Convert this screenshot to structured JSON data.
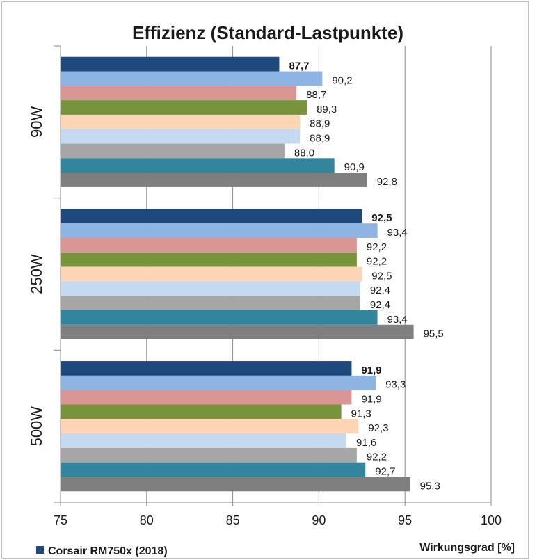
{
  "chart_data": {
    "type": "bar",
    "orientation": "horizontal",
    "title": "Effizienz (Standard-Lastpunkte)",
    "xlabel": "Wirkungsgrad [%]",
    "ylabel": "",
    "xlim": [
      75,
      100
    ],
    "x_ticks": [
      "75",
      "80",
      "85",
      "90",
      "95",
      "100"
    ],
    "grid": true,
    "categories": [
      "90W",
      "250W",
      "500W"
    ],
    "series": [
      {
        "name": "Corsair RM750x (2018)",
        "color": "#1f497d",
        "bold_labels": true,
        "values": [
          87.7,
          92.5,
          91.9
        ],
        "labels": [
          "87,7",
          "92,5",
          "91,9"
        ]
      },
      {
        "name": "",
        "color": "#8db4e2",
        "values": [
          90.2,
          93.4,
          93.3
        ],
        "labels": [
          "90,2",
          "93,4",
          "93,3"
        ]
      },
      {
        "name": "",
        "color": "#da9694",
        "values": [
          88.7,
          92.2,
          91.9
        ],
        "labels": [
          "88,7",
          "92,2",
          "91,9"
        ]
      },
      {
        "name": "",
        "color": "#77933c",
        "values": [
          89.3,
          92.2,
          91.3
        ],
        "labels": [
          "89,3",
          "92,2",
          "91,3"
        ]
      },
      {
        "name": "",
        "color": "#fcd5b4",
        "values": [
          88.9,
          92.5,
          92.3
        ],
        "labels": [
          "88,9",
          "92,5",
          "92,3"
        ]
      },
      {
        "name": "",
        "color": "#c5d9f1",
        "values": [
          88.9,
          92.4,
          91.6
        ],
        "labels": [
          "88,9",
          "92,4",
          "91,6"
        ]
      },
      {
        "name": "",
        "color": "#a6a6a6",
        "values": [
          88.0,
          92.4,
          92.2
        ],
        "labels": [
          "88,0",
          "92,4",
          "92,2"
        ]
      },
      {
        "name": "",
        "color": "#31859c",
        "values": [
          90.9,
          93.4,
          92.7
        ],
        "labels": [
          "90,9",
          "93,4",
          "92,7"
        ]
      },
      {
        "name": "",
        "color": "#7f7f7f",
        "values": [
          92.8,
          95.5,
          95.3
        ],
        "labels": [
          "92,8",
          "95,5",
          "95,3"
        ]
      }
    ],
    "legend": {
      "position": "bottom-left",
      "visible_entries": [
        "Corsair RM750x (2018)"
      ],
      "color": "#1f497d"
    }
  }
}
